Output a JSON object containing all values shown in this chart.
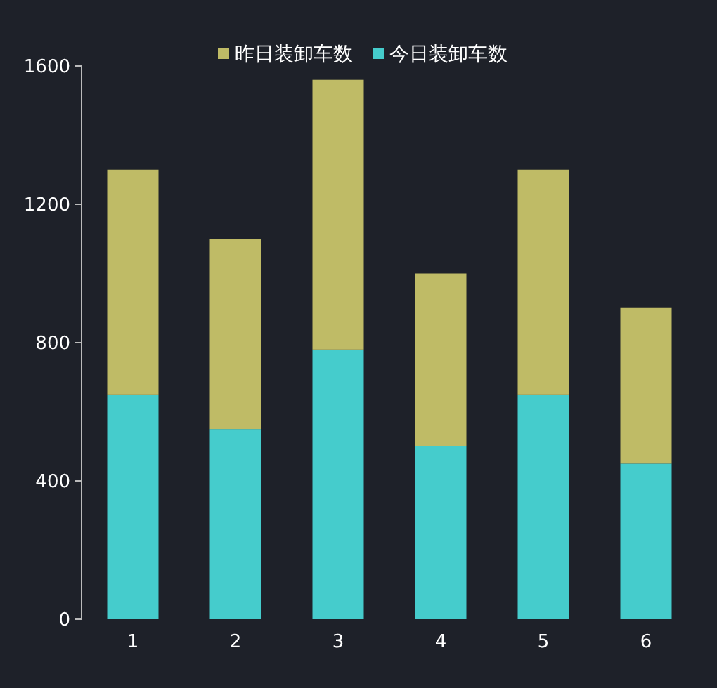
{
  "chart_data": {
    "type": "bar",
    "stacked": true,
    "categories": [
      "1",
      "2",
      "3",
      "4",
      "5",
      "6"
    ],
    "series": [
      {
        "name": "今日装卸车数",
        "color": "#45cccc",
        "values": [
          650,
          550,
          780,
          500,
          650,
          450
        ]
      },
      {
        "name": "昨日装卸车数",
        "color": "#bfbb66",
        "values": [
          650,
          550,
          780,
          500,
          650,
          450
        ]
      }
    ],
    "ylim": [
      0,
      1600
    ],
    "yticks": [
      0,
      400,
      800,
      1200,
      1600
    ],
    "grid": false,
    "legend": "top"
  }
}
